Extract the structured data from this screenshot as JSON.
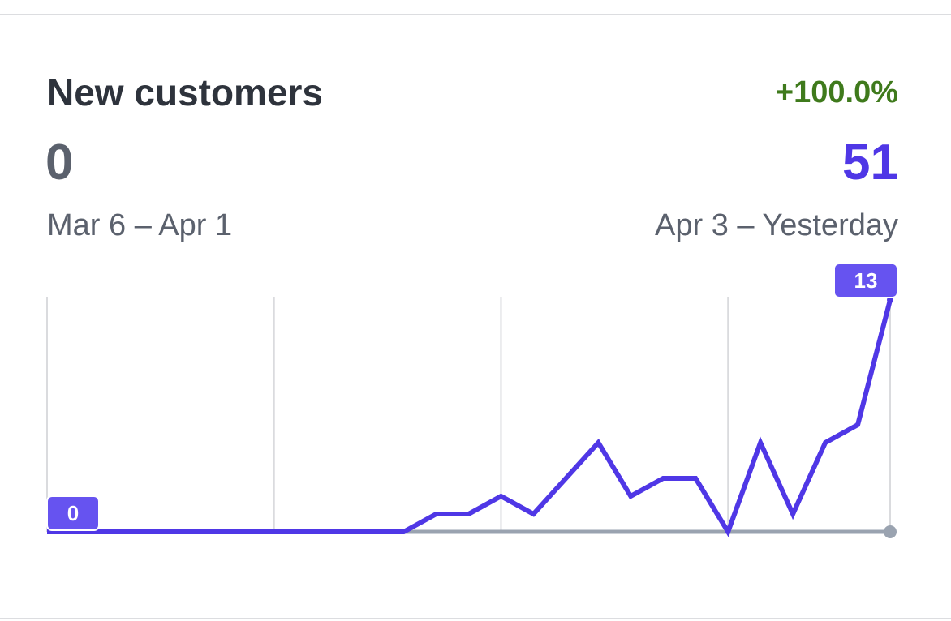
{
  "chart_data": {
    "type": "line",
    "title": "New customers",
    "change": "+100.0%",
    "ylim": [
      0,
      13
    ],
    "grid": true,
    "series": [
      {
        "name": "Mar 6 – Apr 1",
        "color": "#9aa3b0",
        "total": 0,
        "values": [
          0,
          0,
          0,
          0,
          0,
          0,
          0,
          0,
          0,
          0,
          0,
          0,
          0,
          0,
          0,
          0,
          0,
          0,
          0,
          0,
          0,
          0,
          0,
          0,
          0,
          0,
          0
        ]
      },
      {
        "name": "Apr 3 – Yesterday",
        "color": "#4f37e6",
        "total": 51,
        "values": [
          0,
          0,
          0,
          0,
          0,
          0,
          0,
          0,
          0,
          0,
          0,
          0,
          1,
          1,
          2,
          1,
          3,
          5,
          2,
          3,
          3,
          0,
          5,
          1,
          5,
          6,
          13
        ]
      }
    ]
  }
}
